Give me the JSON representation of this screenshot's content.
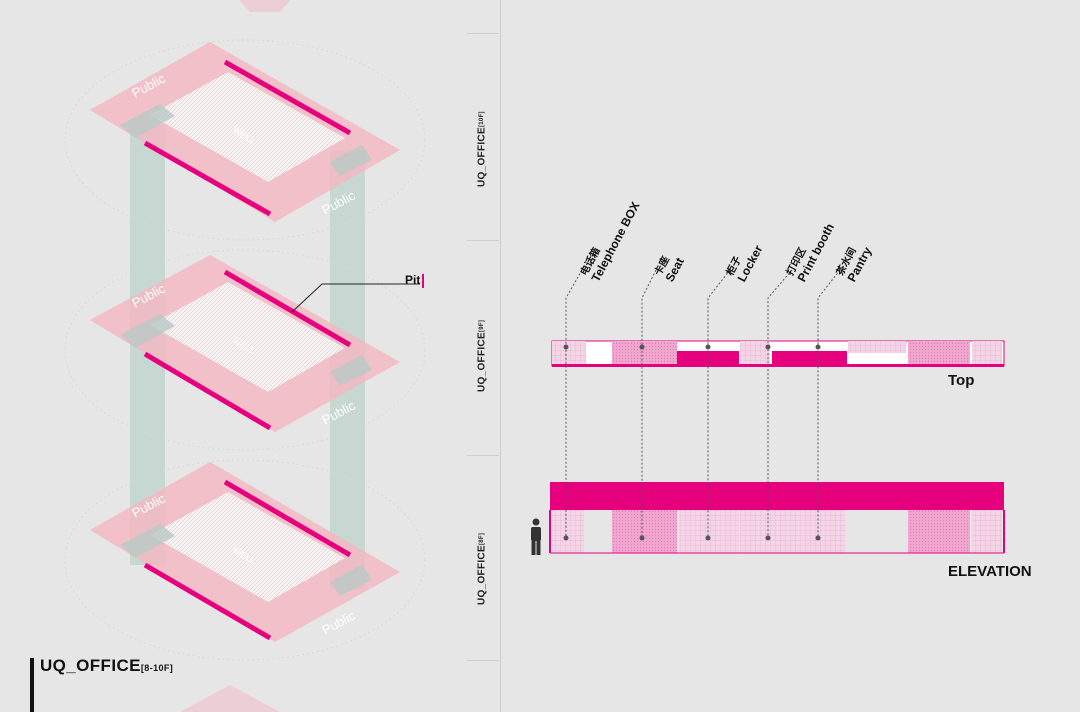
{
  "floor_labels": [
    {
      "main": "UQ_OFFICE",
      "sub": "[10F]"
    },
    {
      "main": "UQ_OFFICE",
      "sub": "[9F]"
    },
    {
      "main": "UQ_OFFICE",
      "sub": "[8F]"
    }
  ],
  "title": {
    "main": "UQ_OFFICE",
    "sub": "[8-10F]"
  },
  "pit_label": "Pit",
  "plan_labels": {
    "public": "Public",
    "well": "WELL"
  },
  "callouts": [
    {
      "cn": "电话箱",
      "en": "Telephone BOX"
    },
    {
      "cn": "卡座",
      "en": "Seat"
    },
    {
      "cn": "柜子",
      "en": "Locker"
    },
    {
      "cn": "打印区",
      "en": "Print booth"
    },
    {
      "cn": "茶水间",
      "en": "Pantry"
    }
  ],
  "views": {
    "top": "Top",
    "elevation": "ELEVATION"
  },
  "colors": {
    "accent": "#e6007e",
    "plan": "#f2b8c2",
    "plan_edge": "#e89aab",
    "shaft": "#9fc7b8",
    "background": "#e6e6e6"
  },
  "icons": {
    "person": "person-icon"
  }
}
